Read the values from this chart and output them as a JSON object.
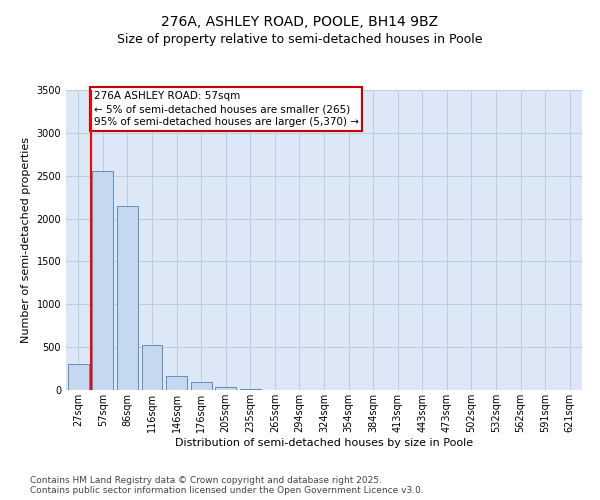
{
  "title": "276A, ASHLEY ROAD, POOLE, BH14 9BZ",
  "subtitle": "Size of property relative to semi-detached houses in Poole",
  "xlabel": "Distribution of semi-detached houses by size in Poole",
  "ylabel": "Number of semi-detached properties",
  "categories": [
    "27sqm",
    "57sqm",
    "86sqm",
    "116sqm",
    "146sqm",
    "176sqm",
    "205sqm",
    "235sqm",
    "265sqm",
    "294sqm",
    "324sqm",
    "354sqm",
    "384sqm",
    "413sqm",
    "443sqm",
    "473sqm",
    "502sqm",
    "532sqm",
    "562sqm",
    "591sqm",
    "621sqm"
  ],
  "values": [
    300,
    2550,
    2150,
    520,
    160,
    90,
    35,
    15,
    3,
    0,
    0,
    0,
    0,
    0,
    0,
    0,
    0,
    0,
    0,
    0,
    0
  ],
  "bar_color": "#c5d8f0",
  "bar_edge_color": "#5080b0",
  "ylim": [
    0,
    3500
  ],
  "yticks": [
    0,
    500,
    1000,
    1500,
    2000,
    2500,
    3000,
    3500
  ],
  "red_line_x": 1,
  "annotation_title": "276A ASHLEY ROAD: 57sqm",
  "annotation_line1": "← 5% of semi-detached houses are smaller (265)",
  "annotation_line2": "95% of semi-detached houses are larger (5,370) →",
  "annotation_box_facecolor": "#ffffff",
  "annotation_box_edgecolor": "#cc0000",
  "footer_line1": "Contains HM Land Registry data © Crown copyright and database right 2025.",
  "footer_line2": "Contains public sector information licensed under the Open Government Licence v3.0.",
  "background_color": "#ffffff",
  "plot_bg_color": "#dce8f5",
  "grid_color": "#b8cfe0",
  "title_fontsize": 10,
  "subtitle_fontsize": 9,
  "axis_label_fontsize": 8,
  "tick_fontsize": 7,
  "annotation_fontsize": 7.5,
  "footer_fontsize": 6.5
}
